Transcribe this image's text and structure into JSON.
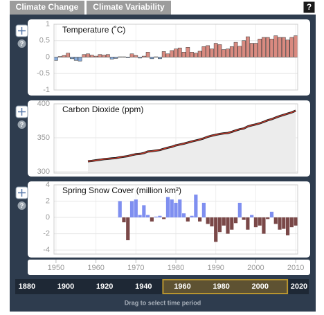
{
  "tabs": [
    "Climate Change",
    "Climate Variability"
  ],
  "help": "?",
  "x_axis": {
    "xlim": [
      1949.5,
      2010.5
    ],
    "xticks": [
      1950,
      1960,
      1970,
      1980,
      1990,
      2000,
      2010
    ]
  },
  "chart_data": [
    {
      "type": "bar",
      "title": "Temperature (˚C)",
      "color": "#d98a80",
      "negative_color": "#86a9d8",
      "ylim": [
        -1,
        1
      ],
      "yticks": [
        1,
        0.5,
        0,
        -0.5,
        -1
      ],
      "x": [
        1950,
        1951,
        1952,
        1953,
        1954,
        1955,
        1956,
        1957,
        1958,
        1959,
        1960,
        1961,
        1962,
        1963,
        1964,
        1965,
        1966,
        1967,
        1968,
        1969,
        1970,
        1971,
        1972,
        1973,
        1974,
        1975,
        1976,
        1977,
        1978,
        1979,
        1980,
        1981,
        1982,
        1983,
        1984,
        1985,
        1986,
        1987,
        1988,
        1989,
        1990,
        1991,
        1992,
        1993,
        1994,
        1995,
        1996,
        1997,
        1998,
        1999,
        2000,
        2001,
        2002,
        2003,
        2004,
        2005,
        2006,
        2007,
        2008,
        2009,
        2010
      ],
      "values": [
        -0.1,
        0.02,
        0.05,
        0.12,
        -0.05,
        -0.1,
        -0.12,
        0.08,
        0.1,
        0.06,
        0.03,
        0.08,
        0.06,
        0.08,
        -0.06,
        -0.04,
        0.01,
        0.01,
        -0.02,
        0.1,
        0.05,
        -0.03,
        0.03,
        0.15,
        -0.05,
        0.01,
        -0.05,
        0.17,
        0.1,
        0.2,
        0.25,
        0.28,
        0.15,
        0.3,
        0.15,
        0.12,
        0.18,
        0.32,
        0.35,
        0.25,
        0.42,
        0.38,
        0.23,
        0.25,
        0.32,
        0.45,
        0.33,
        0.5,
        0.62,
        0.42,
        0.42,
        0.55,
        0.6,
        0.6,
        0.55,
        0.65,
        0.6,
        0.6,
        0.52,
        0.6,
        0.65
      ]
    },
    {
      "type": "line",
      "title": "Carbon Dioxide (ppm)",
      "color": "#d23a2a",
      "edge_color": "#222222",
      "area_color": "#ececec",
      "ylim": [
        298,
        400
      ],
      "yticks": [
        300,
        350,
        400
      ],
      "x": [
        1958,
        1959,
        1960,
        1961,
        1962,
        1963,
        1964,
        1965,
        1966,
        1967,
        1968,
        1969,
        1970,
        1971,
        1972,
        1973,
        1974,
        1975,
        1976,
        1977,
        1978,
        1979,
        1980,
        1981,
        1982,
        1983,
        1984,
        1985,
        1986,
        1987,
        1988,
        1989,
        1990,
        1991,
        1992,
        1993,
        1994,
        1995,
        1996,
        1997,
        1998,
        1999,
        2000,
        2001,
        2002,
        2003,
        2004,
        2005,
        2006,
        2007,
        2008,
        2009,
        2010
      ],
      "values": [
        315.3,
        316,
        316.9,
        317.6,
        318.5,
        319,
        319.6,
        320,
        321.4,
        322.2,
        323,
        324.6,
        325.7,
        326.3,
        327.5,
        329.7,
        330.2,
        331.1,
        332,
        333.8,
        335.4,
        336.8,
        338.8,
        340.1,
        341.4,
        343,
        344.6,
        346,
        347.4,
        349.2,
        351.6,
        353.1,
        354.4,
        355.6,
        356.5,
        357.1,
        358.8,
        360.8,
        362.6,
        363.7,
        366.7,
        368.4,
        369.7,
        371.3,
        373.5,
        375.8,
        377.5,
        379.8,
        381.9,
        383.8,
        385.6,
        387.4,
        389.9
      ]
    },
    {
      "type": "bar",
      "title": "Spring Snow Cover (million km²)",
      "color": "#7f8ff0",
      "negative_color": "#7a4848",
      "ylim": [
        -4.5,
        4
      ],
      "yticks": [
        4,
        2,
        0,
        -2,
        -4
      ],
      "x": [
        1966,
        1967,
        1968,
        1969,
        1970,
        1971,
        1972,
        1973,
        1974,
        1975,
        1976,
        1977,
        1978,
        1979,
        1980,
        1981,
        1982,
        1983,
        1984,
        1985,
        1986,
        1987,
        1988,
        1989,
        1990,
        1991,
        1992,
        1993,
        1994,
        1995,
        1996,
        1997,
        1998,
        1999,
        2000,
        2001,
        2002,
        2003,
        2004,
        2005,
        2006,
        2007,
        2008,
        2009,
        2010
      ],
      "values": [
        2.0,
        -0.6,
        -2.8,
        2.0,
        2.2,
        0.3,
        1.5,
        0.3,
        -0.5,
        0.1,
        0.2,
        -0.2,
        2.5,
        2.2,
        1.8,
        2.2,
        0.5,
        -0.5,
        0.2,
        2.8,
        -0.5,
        1.8,
        -0.8,
        -1.1,
        -3.0,
        -1.8,
        -1.0,
        -2.0,
        -1.5,
        -0.7,
        1.8,
        -0.3,
        -1.5,
        0.3,
        -1.2,
        -1.0,
        -2.0,
        -0.2,
        0.7,
        -0.8,
        -1.5,
        -1.4,
        -2.2,
        -1.2,
        -1.0
      ]
    }
  ],
  "timeline": {
    "xlim": [
      1874,
      2025
    ],
    "ticks": [
      1880,
      1900,
      1920,
      1940,
      1960,
      1980,
      2000,
      2020
    ],
    "selected": [
      1950,
      2014
    ],
    "hint": "Drag to select time period"
  }
}
